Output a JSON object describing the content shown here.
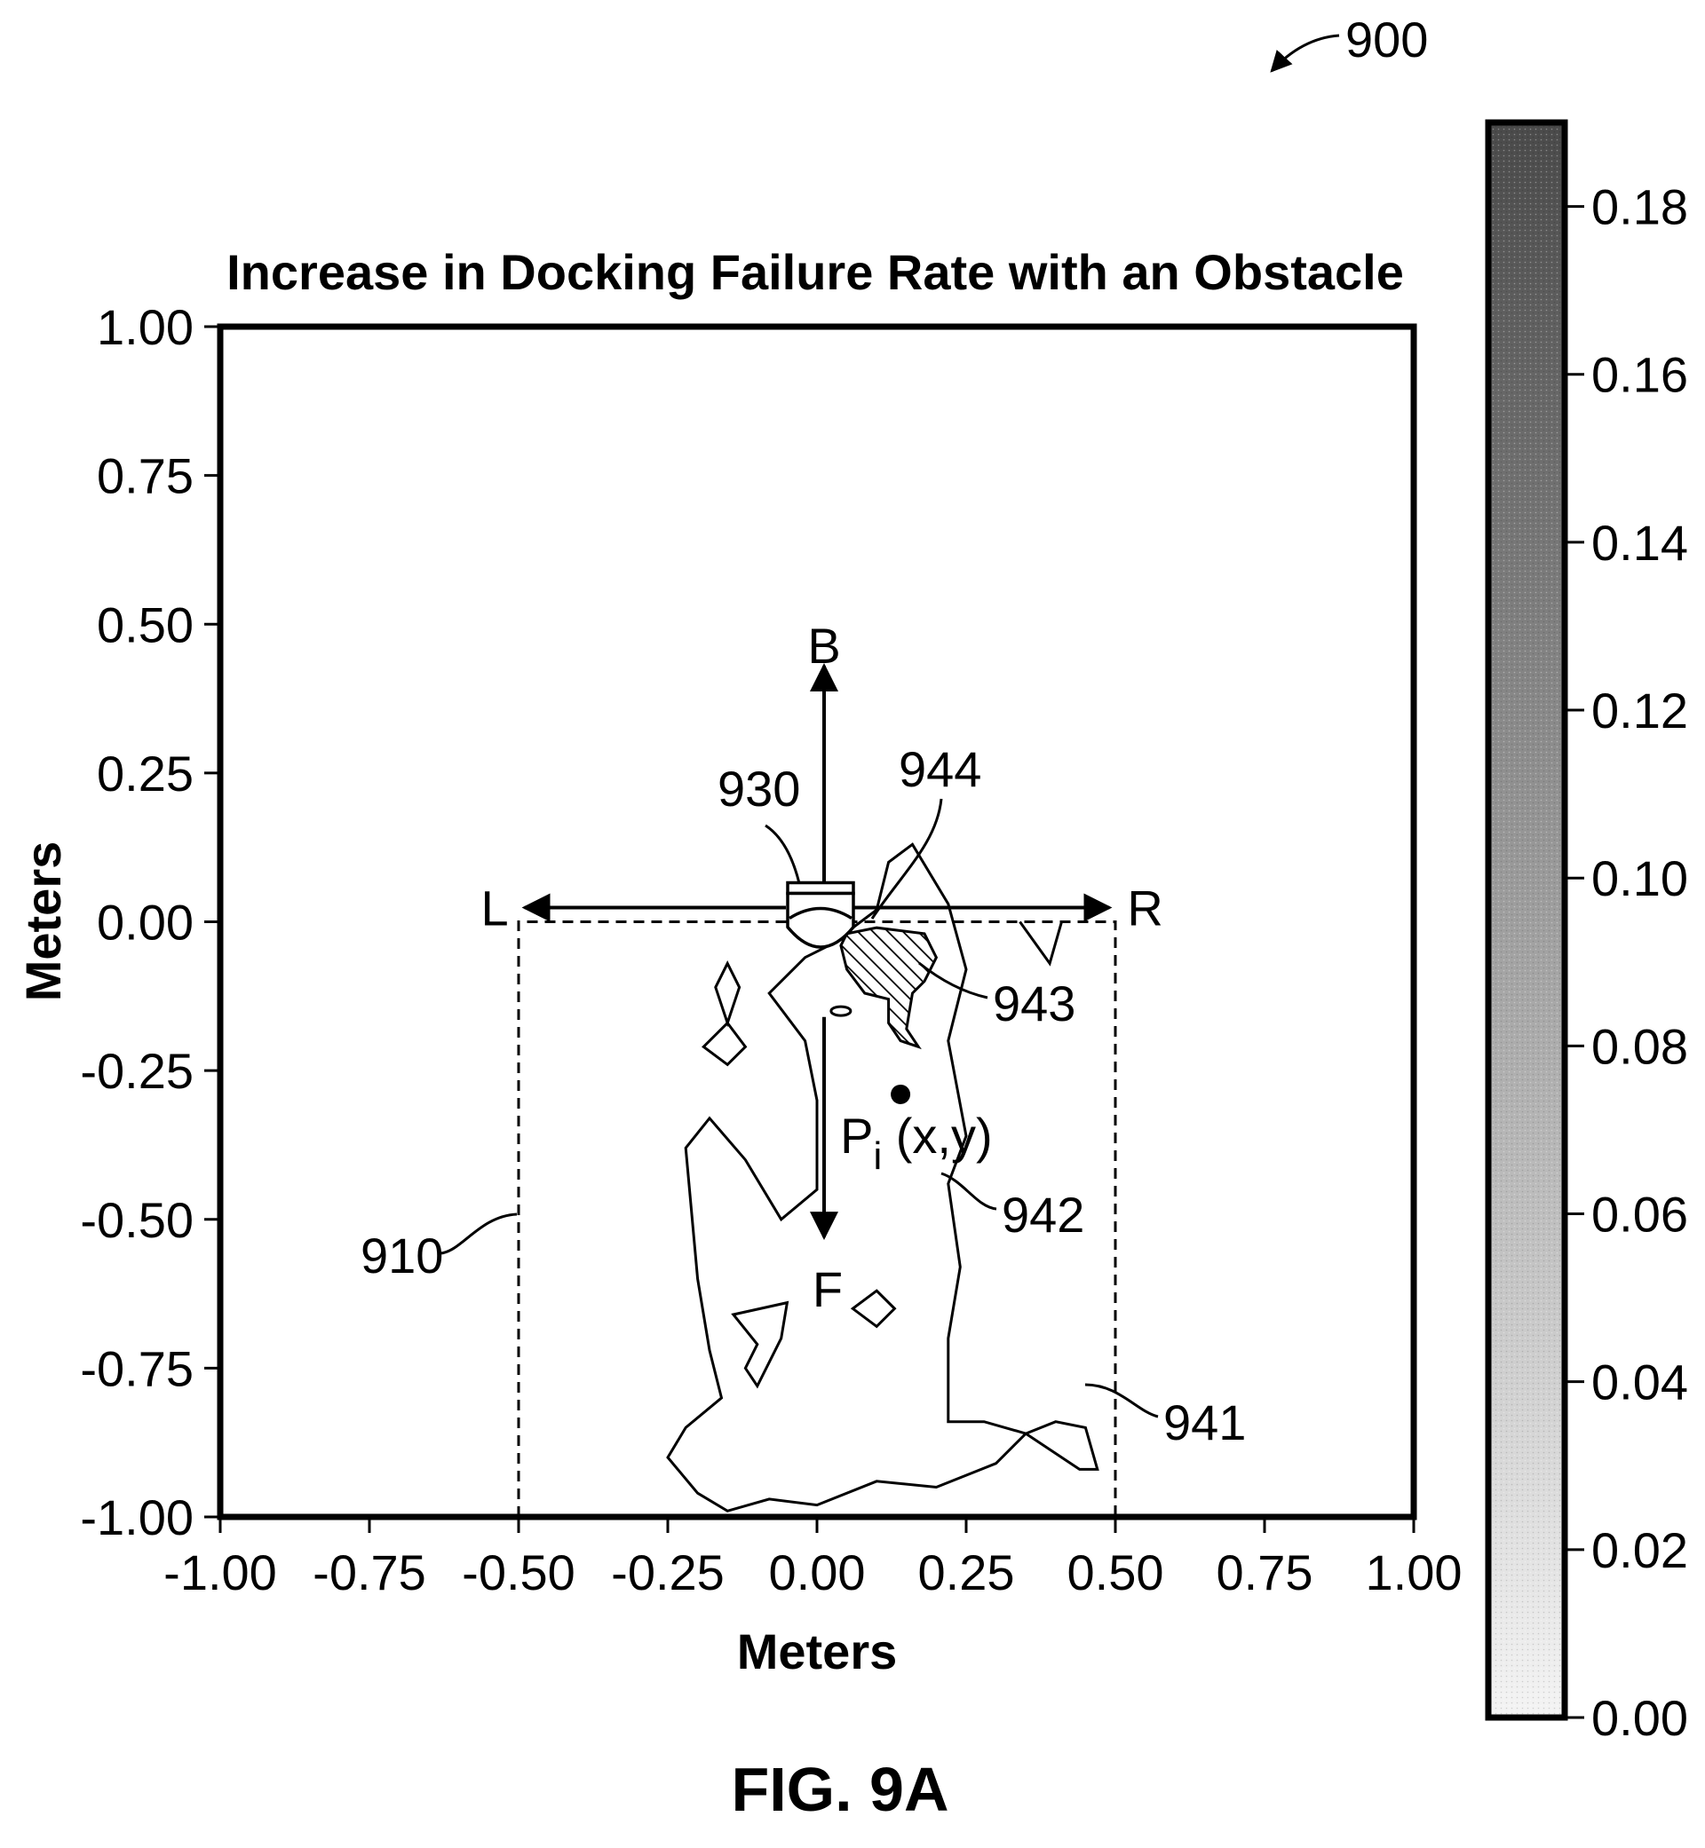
{
  "figure_number": "900",
  "caption": "FIG. 9A",
  "chart_data": {
    "type": "heatmap",
    "title": "Increase in Docking Failure Rate with an Obstacle",
    "xlabel": "Meters",
    "ylabel": "Meters",
    "xlim": [
      -1.0,
      1.0
    ],
    "ylim": [
      -1.0,
      1.0
    ],
    "x_ticks": [
      "-1.00",
      "-0.75",
      "-0.50",
      "-0.25",
      "0.00",
      "0.25",
      "0.50",
      "0.75",
      "1.00"
    ],
    "y_ticks": [
      "1.00",
      "0.75",
      "0.50",
      "0.25",
      "0.00",
      "-0.25",
      "-0.50",
      "-0.75",
      "-1.00"
    ],
    "colorbar": {
      "min": 0.0,
      "max": 0.19,
      "ticks": [
        "0.18",
        "0.16",
        "0.14",
        "0.12",
        "0.10",
        "0.08",
        "0.06",
        "0.04",
        "0.02",
        "0.00"
      ],
      "low_color": "#f2f2f2",
      "high_color": "#4a4a4a"
    },
    "grid": false,
    "direction_labels": {
      "back": "B",
      "front": "F",
      "left": "L",
      "right": "R"
    },
    "point_label": {
      "main": "P",
      "sub": "i",
      "tail": " (x,y)",
      "x": 0.14,
      "y": -0.29
    },
    "dock_region": {
      "x0": -0.5,
      "x1": 0.5,
      "y0": -1.0,
      "y1": 0.0
    },
    "contours": {
      "outer": [
        [
          0.02,
          -0.04
        ],
        [
          -0.02,
          -0.06
        ],
        [
          -0.08,
          -0.12
        ],
        [
          -0.02,
          -0.2
        ],
        [
          0.0,
          -0.3
        ],
        [
          0.0,
          -0.45
        ],
        [
          -0.06,
          -0.5
        ],
        [
          -0.12,
          -0.4
        ],
        [
          -0.18,
          -0.33
        ],
        [
          -0.22,
          -0.38
        ],
        [
          -0.2,
          -0.6
        ],
        [
          -0.18,
          -0.72
        ],
        [
          -0.16,
          -0.8
        ],
        [
          -0.22,
          -0.85
        ],
        [
          -0.25,
          -0.9
        ],
        [
          -0.2,
          -0.96
        ],
        [
          -0.15,
          -0.99
        ],
        [
          -0.08,
          -0.97
        ],
        [
          0.0,
          -0.98
        ],
        [
          0.1,
          -0.94
        ],
        [
          0.2,
          -0.95
        ],
        [
          0.3,
          -0.91
        ],
        [
          0.35,
          -0.86
        ],
        [
          0.4,
          -0.84
        ],
        [
          0.45,
          -0.85
        ],
        [
          0.47,
          -0.92
        ],
        [
          0.44,
          -0.92
        ],
        [
          0.35,
          -0.86
        ],
        [
          0.28,
          -0.84
        ],
        [
          0.22,
          -0.84
        ],
        [
          0.22,
          -0.7
        ],
        [
          0.24,
          -0.58
        ],
        [
          0.22,
          -0.44
        ],
        [
          0.25,
          -0.36
        ],
        [
          0.22,
          -0.2
        ],
        [
          0.25,
          -0.08
        ],
        [
          0.22,
          0.03
        ],
        [
          0.16,
          0.13
        ],
        [
          0.12,
          0.1
        ],
        [
          0.1,
          0.02
        ]
      ],
      "inner_left": [
        [
          -0.14,
          -0.66
        ],
        [
          -0.1,
          -0.71
        ],
        [
          -0.12,
          -0.75
        ],
        [
          -0.1,
          -0.78
        ],
        [
          -0.06,
          -0.7
        ],
        [
          -0.05,
          -0.64
        ]
      ],
      "diamond_upper": [
        [
          -0.15,
          -0.07
        ],
        [
          -0.13,
          -0.11
        ],
        [
          -0.15,
          -0.17
        ],
        [
          -0.17,
          -0.11
        ]
      ],
      "diamond_lower": [
        [
          -0.15,
          -0.17
        ],
        [
          -0.12,
          -0.21
        ],
        [
          -0.15,
          -0.24
        ],
        [
          -0.19,
          -0.21
        ]
      ],
      "diamond_mid": [
        [
          0.1,
          -0.62
        ],
        [
          0.13,
          -0.65
        ],
        [
          0.1,
          -0.68
        ],
        [
          0.06,
          -0.65
        ]
      ],
      "small_oval": {
        "x": 0.04,
        "y": -0.15
      },
      "right_notch": [
        [
          0.34,
          0.0
        ],
        [
          0.39,
          -0.07
        ],
        [
          0.41,
          0.0
        ]
      ],
      "hatched": [
        [
          0.05,
          -0.02
        ],
        [
          0.1,
          -0.01
        ],
        [
          0.18,
          -0.02
        ],
        [
          0.2,
          -0.06
        ],
        [
          0.18,
          -0.1
        ],
        [
          0.16,
          -0.12
        ],
        [
          0.15,
          -0.18
        ],
        [
          0.17,
          -0.21
        ],
        [
          0.14,
          -0.2
        ],
        [
          0.12,
          -0.17
        ],
        [
          0.12,
          -0.13
        ],
        [
          0.08,
          -0.12
        ],
        [
          0.05,
          -0.08
        ],
        [
          0.04,
          -0.04
        ]
      ]
    },
    "reference_numerals": {
      "dock": "930",
      "highest_region": "944",
      "high_region": "943",
      "mid_region": "942",
      "low_region": "941",
      "boundary": "910"
    }
  }
}
